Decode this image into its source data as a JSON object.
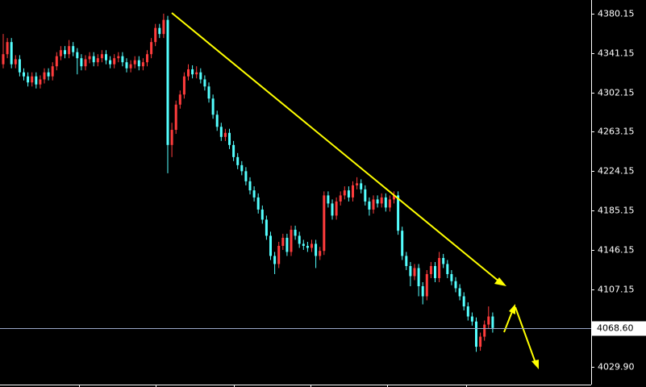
{
  "chart_data": {
    "type": "candlestick",
    "ylim": [
      4013.3,
      4393.7
    ],
    "yticks": [
      4380.15,
      4341.15,
      4302.15,
      4263.15,
      4224.15,
      4185.15,
      4146.15,
      4107.15,
      {
        "value": 4029.9,
        "label": "4029.90"
      }
    ],
    "current_price": {
      "value": 4068.6,
      "label": "4068.60"
    },
    "up_color": "#ff3c3c",
    "down_color": "#54ffff",
    "open": [
      4330,
      4340,
      4352,
      4330,
      4335,
      4322,
      4318,
      4312,
      4318,
      4310,
      4315,
      4322,
      4318,
      4328,
      4338,
      4344,
      4340,
      4348,
      4342,
      4336,
      4328,
      4335,
      4338,
      4332,
      4336,
      4340,
      4334,
      4330,
      4336,
      4338,
      4332,
      4326,
      4330,
      4334,
      4328,
      4332,
      4340,
      4352,
      4366,
      4360,
      4374,
      4250,
      4265,
      4290,
      4300,
      4318,
      4325,
      4320,
      4322,
      4315,
      4308,
      4296,
      4280,
      4268,
      4258,
      4262,
      4250,
      4238,
      4230,
      4224,
      4214,
      4205,
      4198,
      4186,
      4176,
      4160,
      4140,
      4132,
      4150,
      4158,
      4144,
      4166,
      4160,
      4152,
      4150,
      4148,
      4152,
      4140,
      4145,
      4200,
      4192,
      4180,
      4194,
      4200,
      4205,
      4198,
      4210,
      4212,
      4206,
      4194,
      4186,
      4196,
      4192,
      4198,
      4188,
      4196,
      4200,
      4165,
      4140,
      4130,
      4120,
      4128,
      4110,
      4100,
      4122,
      4130,
      4118,
      4138,
      4132,
      4122,
      4115,
      4108,
      4100,
      4090,
      4080,
      4075,
      4050,
      4060,
      4072,
      4080
    ],
    "high": [
      4360,
      4356,
      4356,
      4339,
      4339,
      4326,
      4322,
      4322,
      4322,
      4319,
      4326,
      4326,
      4332,
      4342,
      4348,
      4348,
      4354,
      4352,
      4346,
      4340,
      4339,
      4342,
      4342,
      4340,
      4344,
      4344,
      4338,
      4340,
      4342,
      4342,
      4336,
      4334,
      4338,
      4338,
      4336,
      4344,
      4356,
      4370,
      4370,
      4380.15,
      4378,
      4272,
      4294,
      4304,
      4322,
      4330,
      4329,
      4328,
      4326,
      4319,
      4312,
      4300,
      4284,
      4272,
      4266,
      4266,
      4254,
      4242,
      4234,
      4228,
      4218,
      4209,
      4202,
      4190,
      4180,
      4164,
      4144,
      4154,
      4162,
      4162,
      4170,
      4170,
      4164,
      4156,
      4154,
      4156,
      4156,
      4149,
      4204,
      4204,
      4196,
      4198,
      4204,
      4209,
      4209,
      4214,
      4218,
      4216,
      4210,
      4198,
      4200,
      4200,
      4202,
      4202,
      4200,
      4204,
      4204,
      4169,
      4144,
      4134,
      4132,
      4132,
      4114,
      4126,
      4134,
      4134,
      4144,
      4142,
      4136,
      4126,
      4119,
      4112,
      4104,
      4094,
      4084,
      4079,
      4064,
      4076,
      4090,
      4084
    ],
    "low": [
      4326,
      4336,
      4326,
      4326,
      4318,
      4314,
      4308,
      4308,
      4306,
      4306,
      4311,
      4314,
      4314,
      4324,
      4334,
      4336,
      4336,
      4338,
      4320,
      4324,
      4324,
      4331,
      4328,
      4328,
      4332,
      4330,
      4326,
      4326,
      4332,
      4328,
      4322,
      4322,
      4326,
      4324,
      4324,
      4328,
      4336,
      4348,
      4356,
      4356,
      4222,
      4238,
      4261,
      4286,
      4296,
      4314,
      4316,
      4316,
      4311,
      4304,
      4292,
      4276,
      4264,
      4254,
      4254,
      4246,
      4234,
      4226,
      4220,
      4210,
      4201,
      4194,
      4182,
      4172,
      4156,
      4136,
      4122,
      4128,
      4146,
      4140,
      4140,
      4156,
      4148,
      4146,
      4144,
      4144,
      4128,
      4136,
      4141,
      4188,
      4176,
      4176,
      4190,
      4196,
      4194,
      4194,
      4206,
      4202,
      4190,
      4180,
      4182,
      4188,
      4188,
      4184,
      4184,
      4192,
      4161,
      4136,
      4126,
      4110,
      4116,
      4100,
      4092,
      4096,
      4118,
      4114,
      4114,
      4128,
      4118,
      4111,
      4104,
      4096,
      4086,
      4076,
      4071,
      4045,
      4046,
      4056,
      4068,
      4064
    ],
    "close": [
      4340,
      4352,
      4330,
      4335,
      4322,
      4318,
      4312,
      4318,
      4310,
      4315,
      4322,
      4318,
      4328,
      4338,
      4344,
      4340,
      4348,
      4342,
      4336,
      4328,
      4335,
      4338,
      4332,
      4336,
      4340,
      4334,
      4330,
      4336,
      4338,
      4332,
      4326,
      4330,
      4334,
      4328,
      4332,
      4340,
      4352,
      4366,
      4360,
      4374,
      4250,
      4265,
      4290,
      4300,
      4318,
      4325,
      4320,
      4322,
      4315,
      4308,
      4296,
      4280,
      4268,
      4258,
      4262,
      4250,
      4238,
      4230,
      4224,
      4214,
      4205,
      4198,
      4186,
      4176,
      4160,
      4140,
      4132,
      4150,
      4158,
      4144,
      4166,
      4160,
      4152,
      4150,
      4148,
      4152,
      4140,
      4145,
      4200,
      4192,
      4180,
      4194,
      4200,
      4205,
      4198,
      4210,
      4212,
      4206,
      4194,
      4186,
      4196,
      4192,
      4198,
      4188,
      4196,
      4200,
      4165,
      4140,
      4130,
      4120,
      4128,
      4110,
      4100,
      4122,
      4130,
      4118,
      4138,
      4132,
      4122,
      4115,
      4108,
      4100,
      4090,
      4080,
      4075,
      4050,
      4060,
      4072,
      4080,
      4068.6
    ]
  }
}
